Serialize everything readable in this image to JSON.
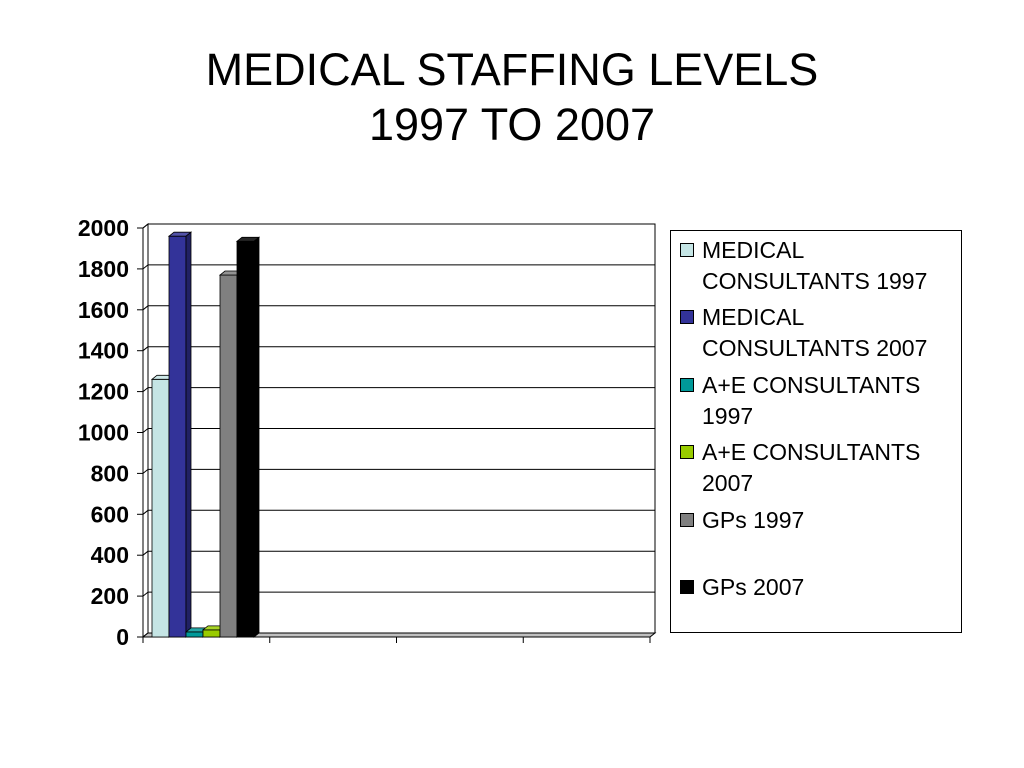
{
  "chart_data": {
    "type": "bar",
    "style": "3d-column",
    "title": [
      "MEDICAL STAFFING LEVELS",
      "1997 TO 2007"
    ],
    "categories": [
      "",
      "",
      "",
      ""
    ],
    "series": [
      {
        "name": "MEDICAL CONSULTANTS 1997",
        "color": "#C5E5E5",
        "values": [
          1260,
          null,
          null,
          null
        ]
      },
      {
        "name": "MEDICAL CONSULTANTS 2007",
        "color": "#333399",
        "values": [
          1960,
          null,
          null,
          null
        ]
      },
      {
        "name": "A+E CONSULTANTS 1997",
        "color": "#009999",
        "values": [
          25,
          null,
          null,
          null
        ]
      },
      {
        "name": "A+E CONSULTANTS 2007",
        "color": "#99CC00",
        "values": [
          35,
          null,
          null,
          null
        ]
      },
      {
        "name": "GPs 1997",
        "color": "#808080",
        "values": [
          1770,
          null,
          null,
          null
        ]
      },
      {
        "name": "GPs 2007",
        "color": "#000000",
        "values": [
          1935,
          null,
          null,
          null
        ]
      }
    ],
    "ylim": [
      0,
      2000
    ],
    "yticks": [
      0,
      200,
      400,
      600,
      800,
      1000,
      1200,
      1400,
      1600,
      1800,
      2000
    ],
    "grid": true,
    "legend": "right"
  },
  "colors": {
    "background": "#FFFFFF",
    "axis": "#000000",
    "floor": "#C0C0C0"
  }
}
